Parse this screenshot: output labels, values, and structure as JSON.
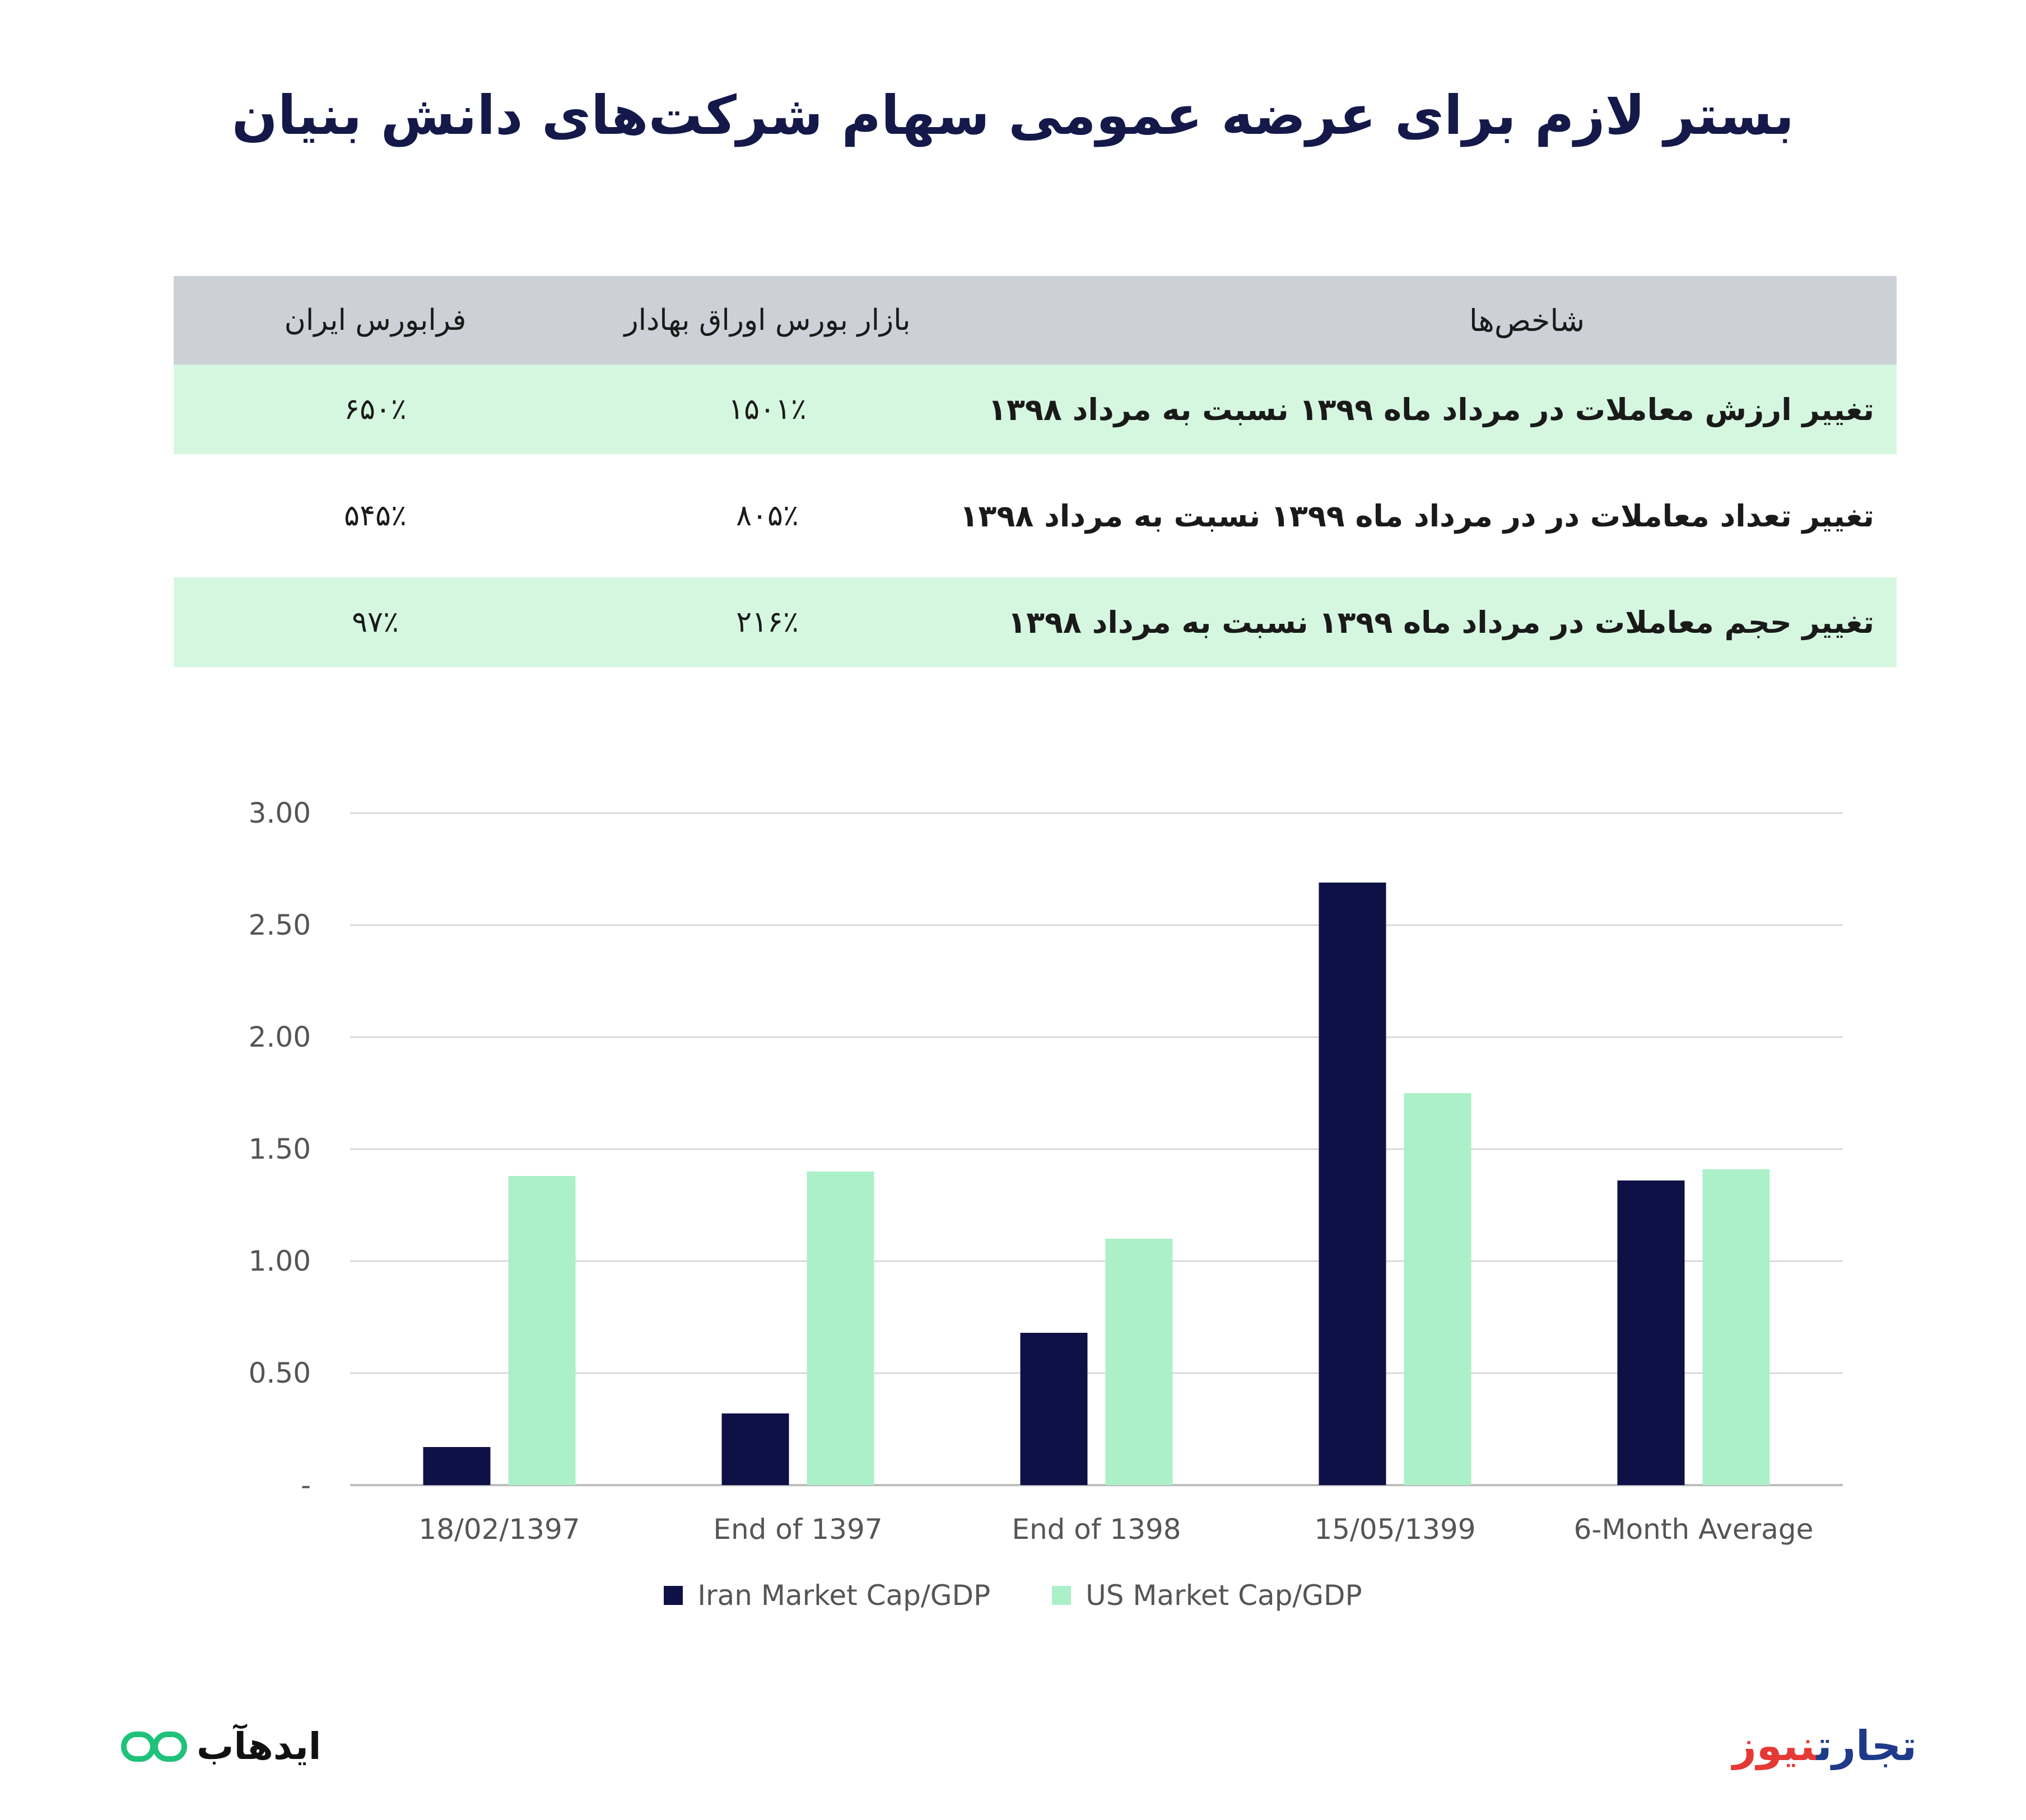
{
  "title": "بستر لازم برای عرضه عمومی سهام شرکت‌های دانش بنیان",
  "table": {
    "headers": {
      "indicator": "شاخص‌ها",
      "bourse": "بازار بورس اوراق بهادار",
      "farabourse": "فرابورس ایران"
    },
    "rows": [
      {
        "indicator": "تغییر ارزش معاملات در مرداد ماه ۱۳۹۹ نسبت  به مرداد ۱۳۹۸",
        "bourse": "۱۵۰۱٪",
        "farabourse": "۶۵۰٪"
      },
      {
        "indicator": "تغییر تعداد معاملات در در مرداد ماه ۱۳۹۹ نسبت  به مرداد ۱۳۹۸",
        "bourse": "۸۰۵٪",
        "farabourse": "۵۴۵٪"
      },
      {
        "indicator": "تغییر حجم معاملات در مرداد ماه ۱۳۹۹ نسبت  به مرداد ۱۳۹۸",
        "bourse": "۲۱۶٪",
        "farabourse": "۹۷٪"
      }
    ]
  },
  "chart_data": {
    "type": "bar",
    "title": "",
    "xlabel": "",
    "ylabel": "",
    "ylim": [
      0,
      3
    ],
    "yticks": [
      0,
      0.5,
      1,
      1.5,
      2,
      2.5,
      3
    ],
    "ytick_labels": [
      "-",
      "0.50",
      "1.00",
      "1.50",
      "2.00",
      "2.50",
      "3.00"
    ],
    "grid": true,
    "legend": "bottom",
    "categories": [
      "18/02/1397",
      "End of 1397",
      "End of 1398",
      "15/05/1399",
      "6-Month Average"
    ],
    "series": [
      {
        "name": "Iran Market Cap/GDP",
        "color": "#0e1145",
        "values": [
          0.17,
          0.32,
          0.68,
          2.69,
          1.36
        ]
      },
      {
        "name": "US Market Cap/GDP",
        "color": "#abf0c9",
        "values": [
          1.38,
          1.4,
          1.1,
          1.75,
          1.41
        ]
      }
    ]
  },
  "logos": {
    "left_text": "ایدهآب",
    "left_icon": "infinity-icon",
    "right_part1": "تجارت",
    "right_part2": "نیوز"
  }
}
